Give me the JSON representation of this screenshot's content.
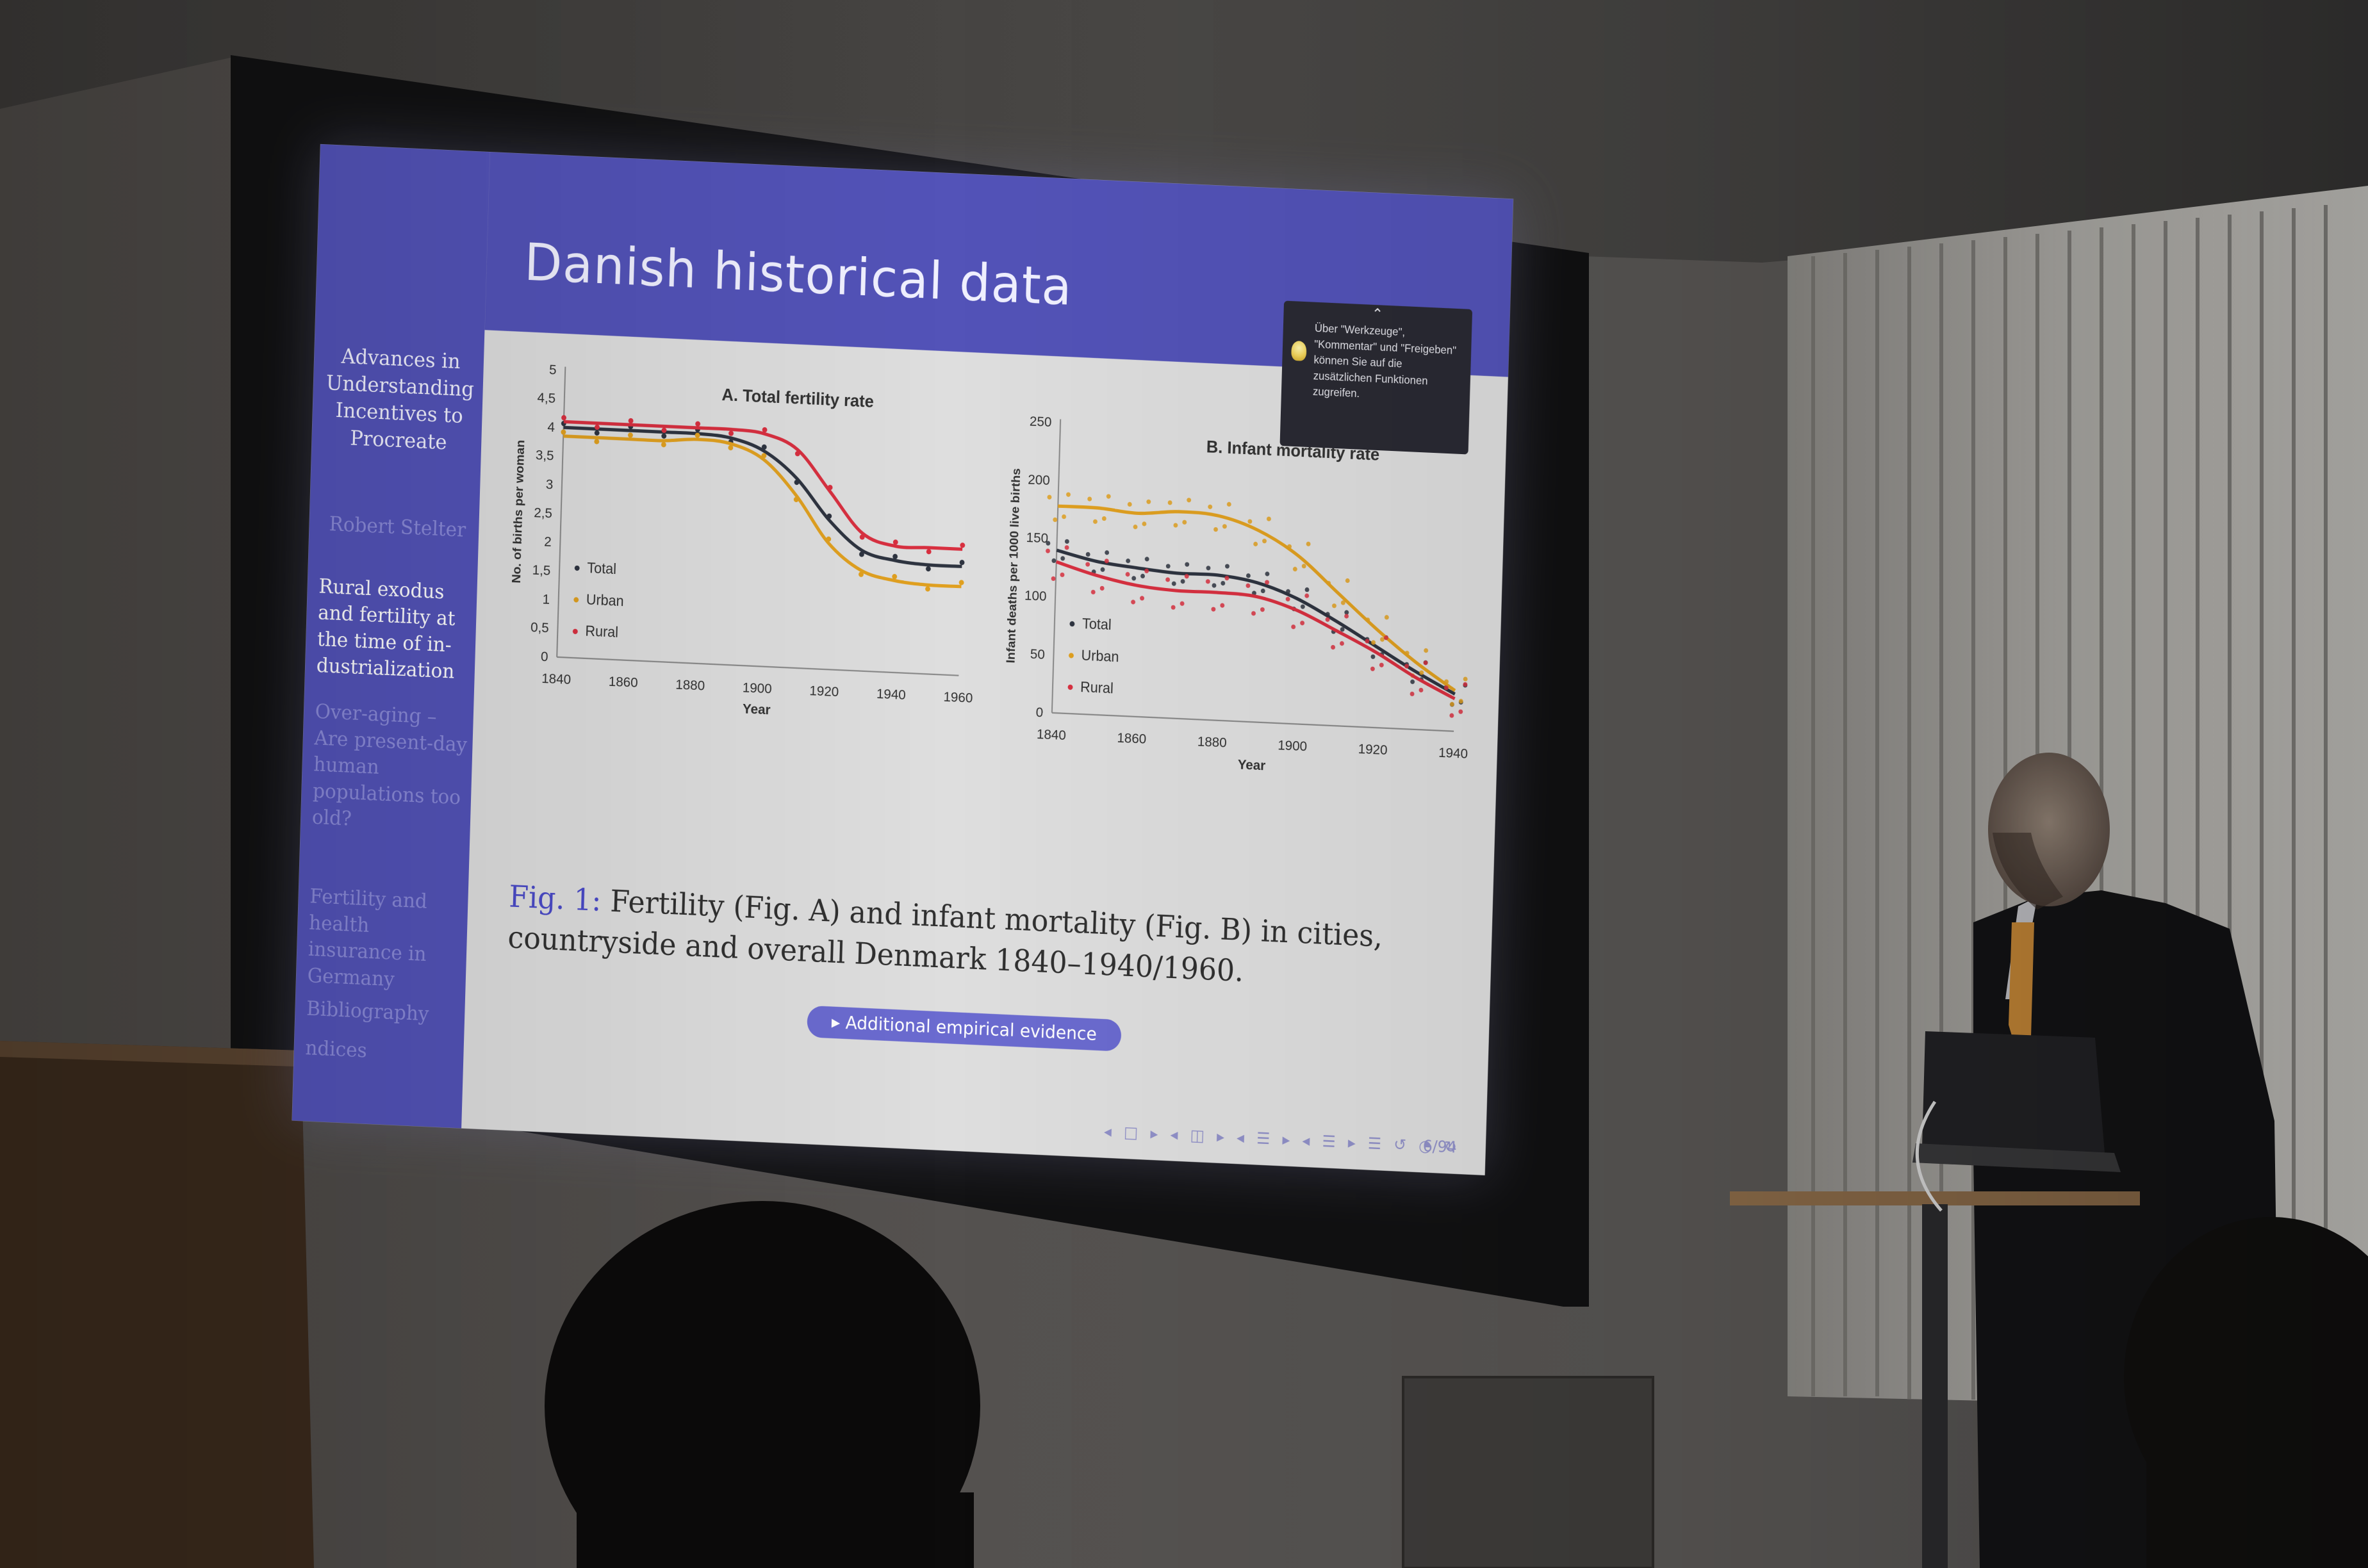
{
  "slide": {
    "title": "Danish historical data",
    "sidebar": {
      "presentation_title": "Advances in Understanding Incentives to Procreate",
      "author": "Robert Stelter",
      "items": [
        {
          "label": "Rural exodus and fertility at the time of in-dustrialization",
          "active": true
        },
        {
          "label": "Over-aging – Are present-day human populations too old?",
          "active": false
        },
        {
          "label": "Fertility and health insurance in Germany",
          "active": false
        },
        {
          "label": "Bibliography",
          "active": false
        },
        {
          "label": "ndices",
          "active": false
        }
      ]
    },
    "tooltip": {
      "text": "Über \"Werkzeuge\", \"Kommentar\" und \"Freigeben\" können Sie auf die zusätzlichen Funktionen zugreifen."
    },
    "caption": {
      "label": "Fig. 1:",
      "text": "Fertility (Fig. A) and infant mortality (Fig. B) in cities, countryside and overall Denmark 1840–1940/1960."
    },
    "button": {
      "label": "▸ Additional empirical evidence"
    },
    "nav_symbols": "◂ □ ▸ ◂ ◫ ▸ ◂ ☰ ▸ ◂ ☰ ▸ ☰ ↺ ◔ ↻",
    "page_number": "6/94",
    "colors": {
      "frame": "#5353b8",
      "total": "#2e3440",
      "urban": "#e0a020",
      "rural": "#d83040"
    }
  },
  "chart_data": [
    {
      "type": "line",
      "title": "A. Total fertility rate",
      "xlabel": "Year",
      "ylabel": "No. of births per woman",
      "xlim": [
        1840,
        1960
      ],
      "ylim": [
        0,
        5
      ],
      "x_ticks": [
        1840,
        1860,
        1880,
        1900,
        1920,
        1940,
        1960
      ],
      "y_ticks": [
        "0",
        "0,5",
        "1",
        "1,5",
        "2",
        "2,5",
        "3",
        "3,5",
        "4",
        "4,5",
        "5"
      ],
      "legend": "bottom-left",
      "x": [
        1840,
        1850,
        1860,
        1870,
        1880,
        1890,
        1900,
        1910,
        1920,
        1930,
        1940,
        1950,
        1960
      ],
      "series": [
        {
          "name": "Total",
          "values": [
            4.0,
            4.0,
            4.0,
            4.0,
            4.0,
            3.95,
            3.75,
            3.3,
            2.6,
            2.1,
            1.95,
            1.9,
            1.9
          ]
        },
        {
          "name": "Urban",
          "values": [
            3.85,
            3.85,
            3.85,
            3.85,
            3.9,
            3.85,
            3.6,
            3.0,
            2.2,
            1.75,
            1.6,
            1.55,
            1.55
          ]
        },
        {
          "name": "Rural",
          "values": [
            4.1,
            4.1,
            4.1,
            4.1,
            4.1,
            4.1,
            4.05,
            3.8,
            3.1,
            2.4,
            2.2,
            2.2,
            2.2
          ]
        }
      ]
    },
    {
      "type": "line",
      "title": "B. Infant mortality rate",
      "xlabel": "Year",
      "ylabel": "Infant deaths per 1000 live births",
      "xlim": [
        1840,
        1940
      ],
      "ylim": [
        0,
        250
      ],
      "x_ticks": [
        1840,
        1860,
        1880,
        1900,
        1920,
        1940
      ],
      "y_ticks": [
        "0",
        "50",
        "100",
        "150",
        "200",
        "250"
      ],
      "legend": "bottom-left",
      "x": [
        1840,
        1850,
        1860,
        1870,
        1880,
        1890,
        1900,
        1910,
        1920,
        1930,
        1940
      ],
      "series": [
        {
          "name": "Total",
          "values": [
            140,
            132,
            128,
            125,
            125,
            120,
            108,
            90,
            70,
            50,
            32
          ]
        },
        {
          "name": "Urban",
          "values": [
            178,
            178,
            175,
            178,
            176,
            165,
            145,
            115,
            85,
            58,
            35
          ]
        },
        {
          "name": "Rural",
          "values": [
            130,
            120,
            113,
            110,
            110,
            108,
            98,
            82,
            65,
            45,
            28
          ]
        }
      ]
    }
  ]
}
